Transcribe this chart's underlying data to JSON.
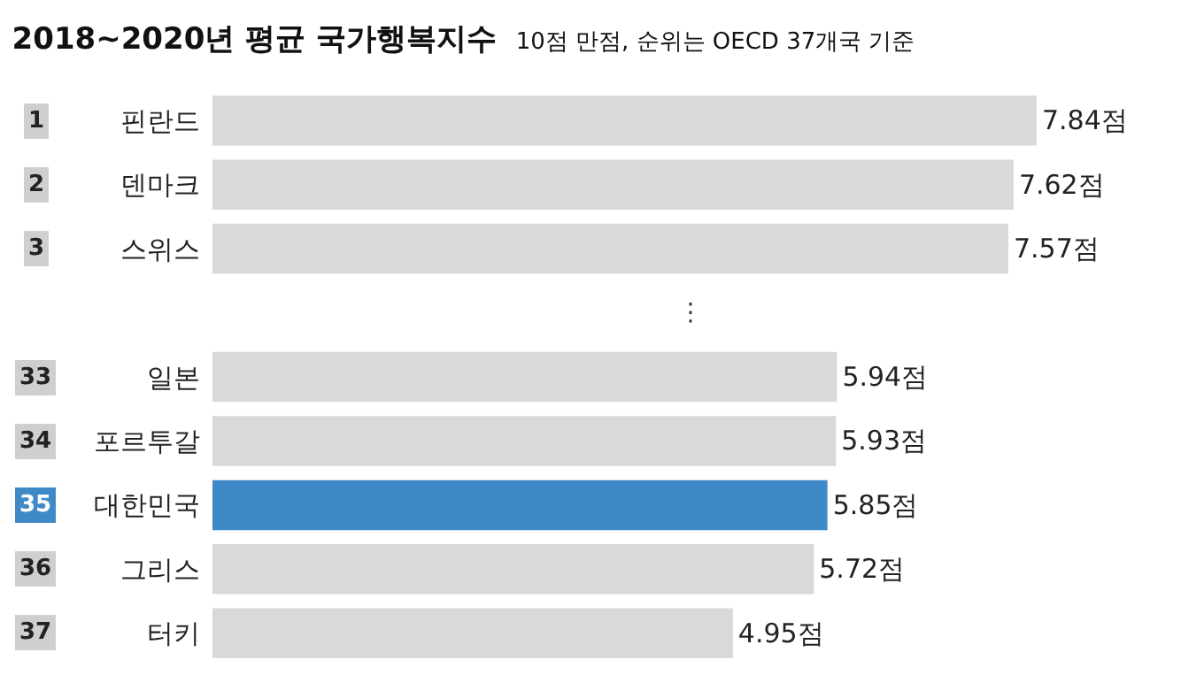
{
  "chart_data": {
    "type": "bar",
    "orientation": "horizontal",
    "title": "2018~2020년 평균 국가행복지수",
    "subtitle": "10점 만점, 순위는 OECD 37개국 기준",
    "categories": [
      "핀란드",
      "덴마크",
      "스위스",
      null,
      "일본",
      "포르투갈",
      "대한민국",
      "그리스",
      "터키"
    ],
    "values": [
      7.84,
      7.62,
      7.57,
      null,
      5.94,
      5.93,
      5.85,
      5.72,
      4.95
    ],
    "colors": [
      "#d9d9d9",
      "#d9d9d9",
      "#d9d9d9",
      "#d9d9d9",
      "#d9d9d9",
      "#d9d9d9",
      "#3f8ac6",
      "#d9d9d9",
      "#d9d9d9"
    ],
    "value_labels": [
      "7.84점",
      "7.62점",
      "7.57점",
      null,
      "5.94점",
      "5.93점",
      "5.85점",
      "5.72점",
      "4.95점"
    ],
    "annotations": [
      "1",
      "2",
      "3",
      "⋮",
      "33",
      "34",
      "35",
      "36",
      "37"
    ],
    "grid": false
  }
}
